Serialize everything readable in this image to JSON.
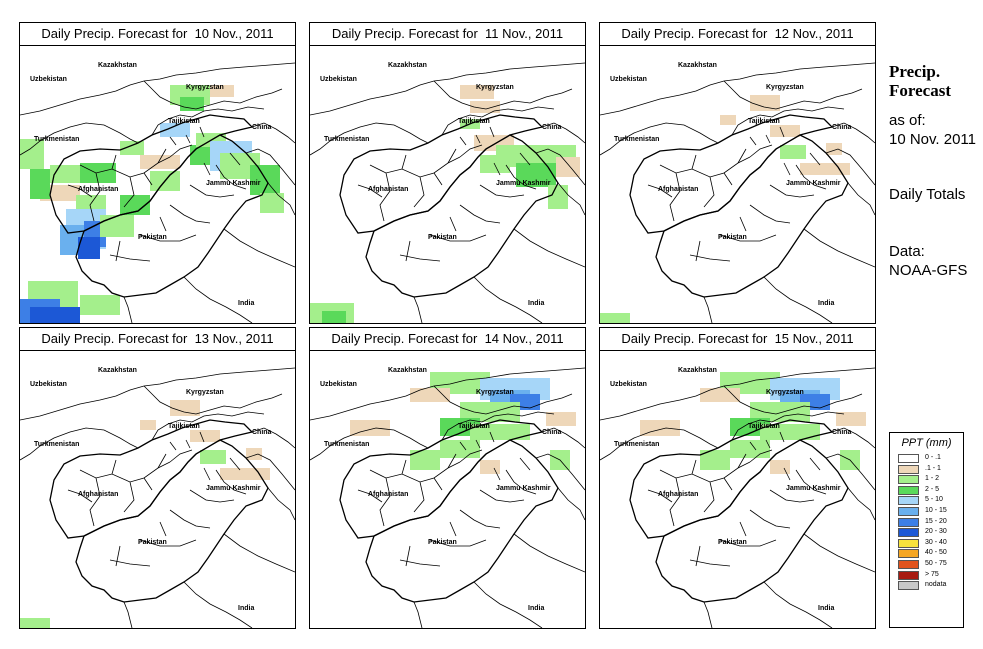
{
  "side_title": "Precip. Forecast",
  "as_of_label": "as of:",
  "as_of_date": "10 Nov. 2011",
  "totals_label": "Daily Totals",
  "data_label": "Data:",
  "data_source": "NOAA-GFS",
  "colors": {
    "tan": "#eed7b9",
    "lightgreen": "#a4ef8c",
    "green": "#5ad95a",
    "lightblue": "#a6d6f8",
    "skyblue": "#6ab0ee",
    "blue": "#3d7fe6",
    "deepblue": "#1c58d6"
  },
  "map_labels": {
    "kazakhstan": "Kazakhstan",
    "uzbekistan": "Uzbekistan",
    "kyrgyzstan": "Kyrgyzstan",
    "tajikistan": "Tajikistan",
    "turkmenistan": "Turkmenistan",
    "china": "China",
    "afghanistan": "Afghanistan",
    "jammu_kashmir": "Jammu Kashmir",
    "pakistan": "Pakistan",
    "india": "India"
  },
  "panels": [
    {
      "title": "Daily Precip. Forecast for  10 Nov., 2011",
      "intensity": "heavy"
    },
    {
      "title": "Daily Precip. Forecast for  11 Nov., 2011",
      "intensity": "moderate"
    },
    {
      "title": "Daily Precip. Forecast for  12 Nov., 2011",
      "intensity": "light"
    },
    {
      "title": "Daily Precip. Forecast for  13 Nov., 2011",
      "intensity": "light"
    },
    {
      "title": "Daily Precip. Forecast for  14 Nov., 2011",
      "intensity": "moderate-north"
    },
    {
      "title": "Daily Precip. Forecast for  15 Nov., 2011",
      "intensity": "moderate-north"
    }
  ],
  "legend": {
    "title": "PPT (mm)",
    "items": [
      {
        "label": "0 - .1",
        "color": "#ffffff"
      },
      {
        "label": ".1 - 1",
        "color": "#eed7b9"
      },
      {
        "label": "1 - 2",
        "color": "#a4ef8c"
      },
      {
        "label": "2 - 5",
        "color": "#5ad95a"
      },
      {
        "label": "5 - 10",
        "color": "#a6d6f8"
      },
      {
        "label": "10 - 15",
        "color": "#6ab0ee"
      },
      {
        "label": "15 - 20",
        "color": "#3d7fe6"
      },
      {
        "label": "20 - 30",
        "color": "#1c58d6"
      },
      {
        "label": "30 - 40",
        "color": "#f7e23c"
      },
      {
        "label": "40 - 50",
        "color": "#f5a623"
      },
      {
        "label": "50 - 75",
        "color": "#e1541e"
      },
      {
        "label": "> 75",
        "color": "#a81c12"
      },
      {
        "label": "nodata",
        "color": "#c8c8c8"
      }
    ]
  }
}
